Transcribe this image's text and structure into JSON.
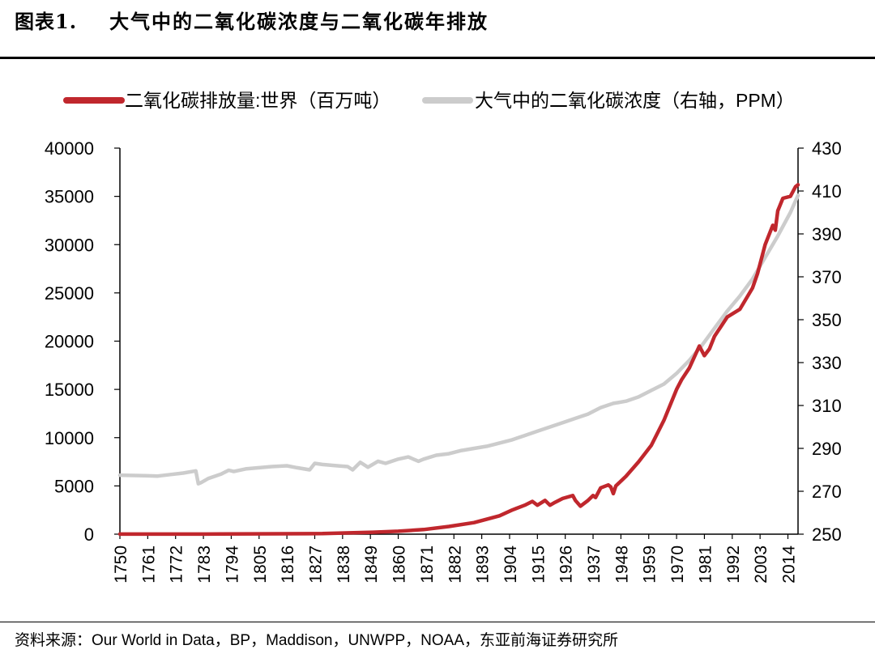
{
  "figure": {
    "label": "图表1.",
    "title": "大气中的二氧化碳浓度与二氧化碳年排放"
  },
  "source": {
    "label": "资料来源：",
    "text": "Our World in Data，BP，Maddison，UNWPP，NOAA，东亚前海证券研究所"
  },
  "chart_data": {
    "type": "line",
    "legend_position": "top",
    "grid": false,
    "x_tick_labels": [
      "1750",
      "1761",
      "1772",
      "1783",
      "1794",
      "1805",
      "1816",
      "1827",
      "1838",
      "1849",
      "1860",
      "1871",
      "1882",
      "1893",
      "1904",
      "1915",
      "1926",
      "1937",
      "1948",
      "1959",
      "1970",
      "1981",
      "1992",
      "2003",
      "2014"
    ],
    "xlim": [
      1750,
      2018
    ],
    "y_left": {
      "ylim": [
        0,
        40000
      ],
      "ticks": [
        "0",
        "5000",
        "10000",
        "15000",
        "20000",
        "25000",
        "30000",
        "35000",
        "40000"
      ]
    },
    "y_right": {
      "ylim": [
        250,
        430
      ],
      "ticks": [
        "250",
        "270",
        "290",
        "310",
        "330",
        "350",
        "370",
        "390",
        "410",
        "430"
      ]
    },
    "series": [
      {
        "name": "二氧化碳排放量:世界（百万吨）",
        "axis": "left",
        "color": "#c0272d",
        "x": [
          1750,
          1790,
          1830,
          1850,
          1860,
          1870,
          1880,
          1890,
          1900,
          1905,
          1910,
          1913,
          1915,
          1918,
          1920,
          1922,
          1925,
          1929,
          1930,
          1932,
          1935,
          1937,
          1938,
          1940,
          1943,
          1944,
          1945,
          1946,
          1950,
          1955,
          1960,
          1965,
          1970,
          1972,
          1975,
          1979,
          1981,
          1983,
          1985,
          1990,
          1995,
          2000,
          2002,
          2005,
          2008,
          2009,
          2010,
          2012,
          2015,
          2017,
          2018
        ],
        "y": [
          9,
          15,
          60,
          200,
          300,
          480,
          800,
          1200,
          1900,
          2500,
          3000,
          3400,
          3000,
          3500,
          3000,
          3300,
          3700,
          4000,
          3500,
          2900,
          3500,
          4000,
          3800,
          4800,
          5100,
          4900,
          4200,
          5000,
          6000,
          7500,
          9200,
          11800,
          15000,
          16000,
          17200,
          19500,
          18500,
          19200,
          20500,
          22500,
          23300,
          25500,
          27000,
          30000,
          32000,
          31500,
          33500,
          34800,
          35000,
          36000,
          36200
        ]
      },
      {
        "name": "大气中的二氧化碳浓度（右轴，PPM）",
        "axis": "right",
        "color": "#cccccc",
        "x": [
          1750,
          1760,
          1765,
          1770,
          1775,
          1780,
          1781,
          1782,
          1785,
          1790,
          1793,
          1795,
          1800,
          1805,
          1810,
          1816,
          1820,
          1825,
          1827,
          1830,
          1835,
          1840,
          1842,
          1845,
          1848,
          1852,
          1855,
          1860,
          1864,
          1868,
          1870,
          1875,
          1880,
          1885,
          1890,
          1895,
          1900,
          1905,
          1910,
          1915,
          1920,
          1925,
          1930,
          1935,
          1940,
          1945,
          1950,
          1955,
          1960,
          1965,
          1970,
          1975,
          1980,
          1985,
          1990,
          1995,
          2000,
          2005,
          2010,
          2015,
          2018
        ],
        "y": [
          277.5,
          277.3,
          277.1,
          277.8,
          278.5,
          279.5,
          273.5,
          274,
          276,
          278,
          279.8,
          279.2,
          280.5,
          281,
          281.5,
          281.9,
          281,
          280,
          283,
          282.5,
          282,
          281.5,
          280,
          283.5,
          281.2,
          284,
          283,
          285,
          286,
          284,
          285,
          286.8,
          287.5,
          289,
          290,
          291,
          292.5,
          294,
          296,
          298,
          300,
          302,
          304,
          306,
          309,
          311,
          312,
          314,
          317,
          320,
          325,
          331,
          338,
          346,
          354,
          361,
          369,
          379,
          389,
          400,
          408
        ]
      }
    ]
  }
}
